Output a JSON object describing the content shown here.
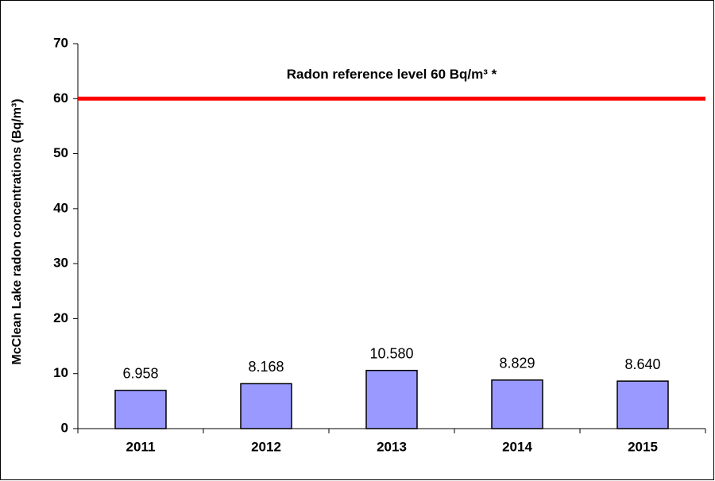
{
  "chart_data": {
    "type": "bar",
    "y_label": "McClean Lake radon concentrations (Bq/m³)",
    "categories": [
      "2011",
      "2012",
      "2013",
      "2014",
      "2015"
    ],
    "values": [
      6.958,
      8.168,
      10.58,
      8.829,
      8.64
    ],
    "value_labels": [
      "6.958",
      "8.168",
      "10.580",
      "8.829",
      "8.640"
    ],
    "color": "#9999ff",
    "ylim": [
      0,
      70
    ],
    "yticks": [
      0,
      10,
      20,
      30,
      40,
      50,
      60,
      70
    ],
    "reference_line": {
      "value": 60,
      "label": "Radon reference level 60 Bq/m³ *",
      "color": "#ff0000"
    }
  }
}
